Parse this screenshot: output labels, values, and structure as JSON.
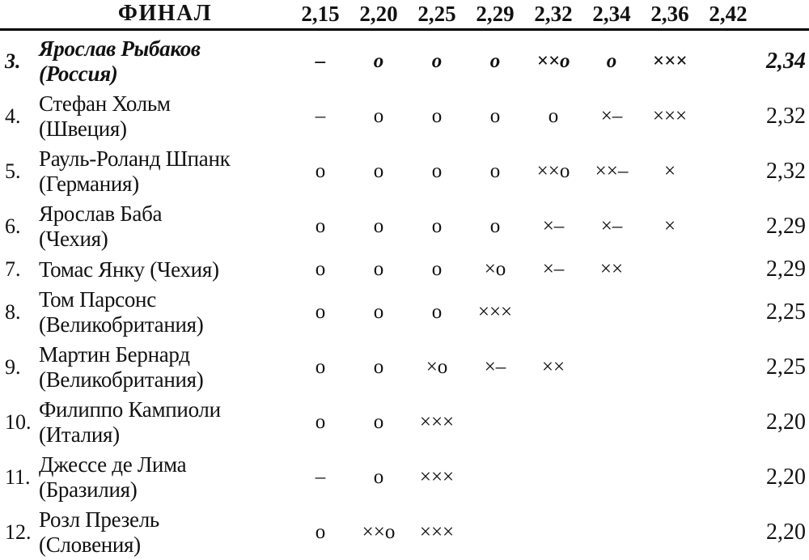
{
  "header": {
    "title": "ФИНАЛ",
    "heights": [
      "2,15",
      "2,20",
      "2,25",
      "2,29",
      "2,32",
      "2,34",
      "2,36",
      "2,42"
    ]
  },
  "legend": {
    "cleared_mark": "o",
    "failed_mark": "×",
    "passed_mark": "–"
  },
  "rows": [
    {
      "rank": "3.",
      "name": "Ярослав Рыбаков",
      "country": "(Россия)",
      "attempts": [
        "–",
        "o",
        "o",
        "o",
        "××o",
        "o",
        "×××",
        ""
      ],
      "result": "2,34"
    },
    {
      "rank": "4.",
      "name": "Стефан Хольм",
      "country": "(Швеция)",
      "attempts": [
        "–",
        "o",
        "o",
        "o",
        "o",
        "×–",
        "×××",
        ""
      ],
      "result": "2,32"
    },
    {
      "rank": "5.",
      "name": "Рауль-Роланд Шпанк",
      "country": "(Германия)",
      "attempts": [
        "o",
        "o",
        "o",
        "o",
        "××o",
        "××–",
        "×",
        ""
      ],
      "result": "2,32"
    },
    {
      "rank": "6.",
      "name": "Ярослав Баба",
      "country": "(Чехия)",
      "attempts": [
        "o",
        "o",
        "o",
        "o",
        "×–",
        "×–",
        "×",
        ""
      ],
      "result": "2,29"
    },
    {
      "rank": "7.",
      "name": "Томас Янку (Чехия)",
      "country": "",
      "attempts": [
        "o",
        "o",
        "o",
        "×o",
        "×–",
        "××",
        "",
        ""
      ],
      "result": "2,29"
    },
    {
      "rank": "8.",
      "name": "Том Парсонс",
      "country": "(Великобритания)",
      "attempts": [
        "o",
        "o",
        "o",
        "×××",
        "",
        "",
        "",
        ""
      ],
      "result": "2,25"
    },
    {
      "rank": "9.",
      "name": "Мартин Бернард",
      "country": "(Великобритания)",
      "attempts": [
        "o",
        "o",
        "×o",
        "×–",
        "××",
        "",
        "",
        ""
      ],
      "result": "2,25"
    },
    {
      "rank": "10.",
      "name": "Филиппо Кампиоли",
      "country": "(Италия)",
      "attempts": [
        "o",
        "o",
        "×××",
        "",
        "",
        "",
        "",
        ""
      ],
      "result": "2,20"
    },
    {
      "rank": "11.",
      "name": "Джессе де Лима",
      "country": "(Бразилия)",
      "attempts": [
        "–",
        "o",
        "×××",
        "",
        "",
        "",
        "",
        ""
      ],
      "result": "2,20"
    },
    {
      "rank": "12.",
      "name": "Розл Презель",
      "country": "(Словения)",
      "attempts": [
        "o",
        "××o",
        "×××",
        "",
        "",
        "",
        "",
        ""
      ],
      "result": "2,20"
    }
  ]
}
